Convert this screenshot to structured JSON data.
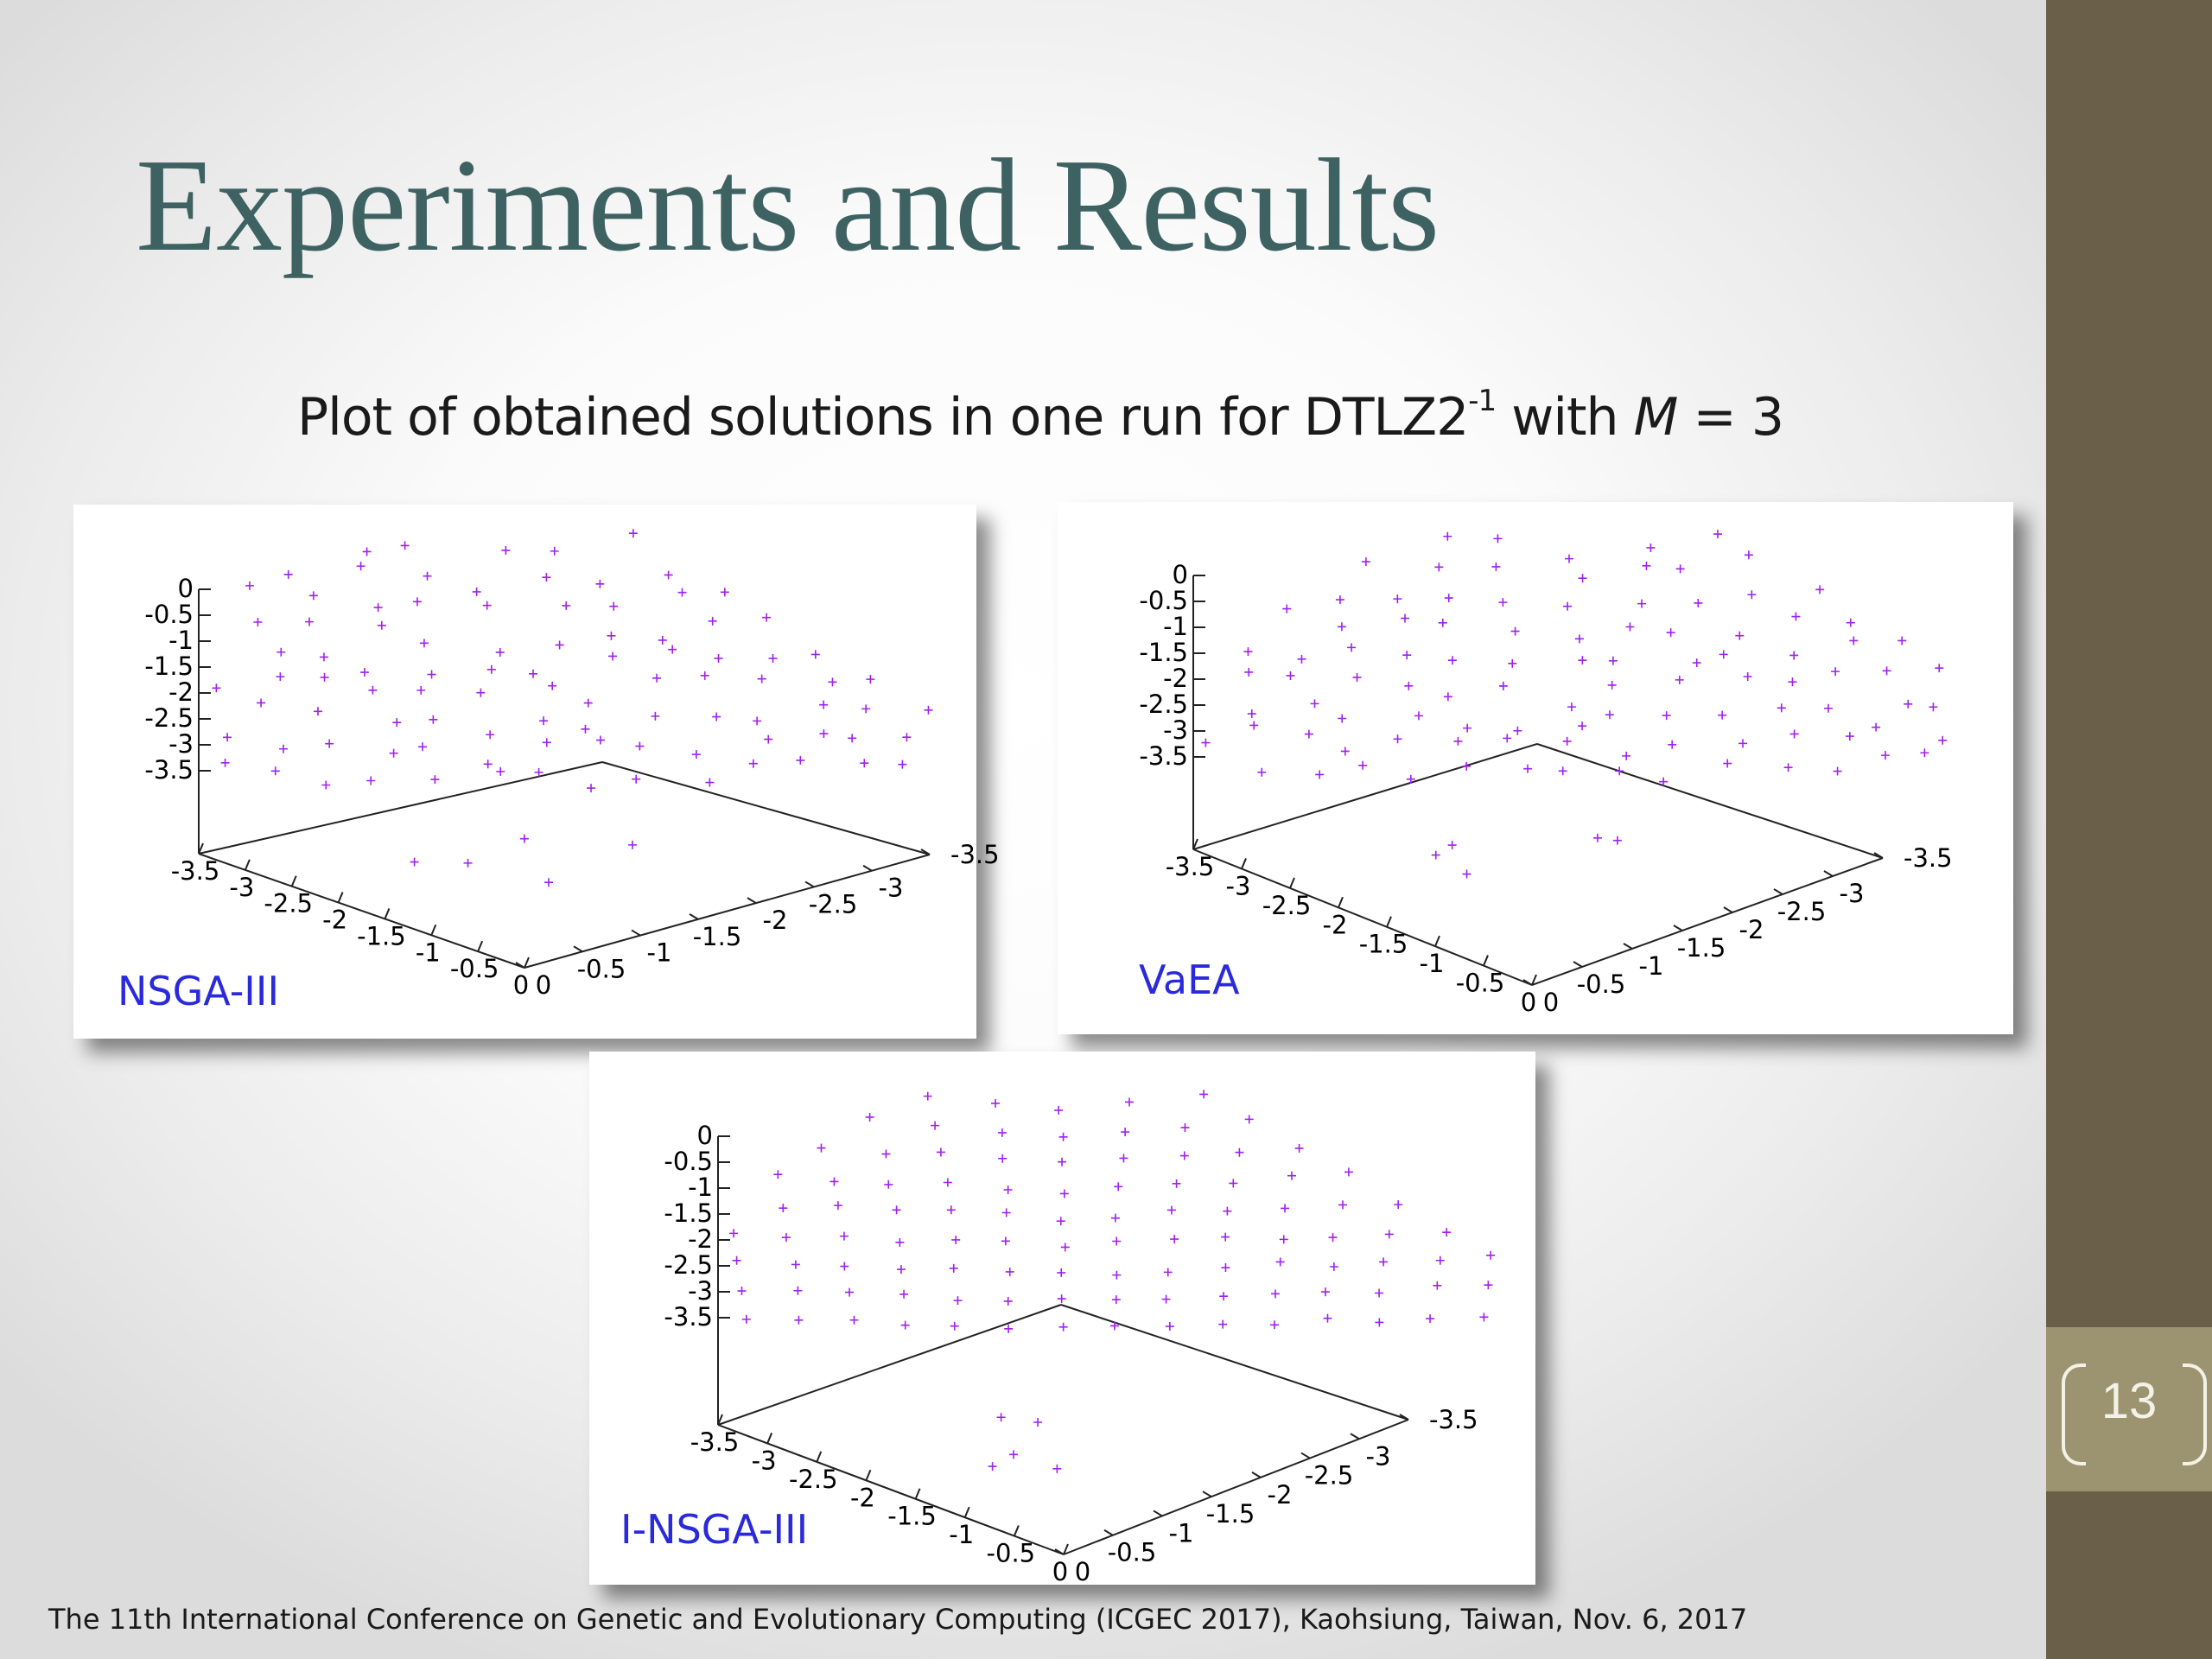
{
  "slide": {
    "title": "Experiments and Results",
    "subtitle_prefix": "Plot of obtained solutions in one run for DTLZ2",
    "subtitle_sup": "-1",
    "subtitle_with": " with ",
    "subtitle_m": "M",
    "subtitle_suffix": " = 3",
    "footer": "The 11th International Conference on Genetic and Evolutionary Computing (ICGEC 2017), Kaohsiung, Taiwan, Nov. 6, 2017",
    "slide_number": "13"
  },
  "colors": {
    "title": "#3e6262",
    "sidebar": "#6a604a",
    "number_box": "#9c9370",
    "plot_label": "#2a2adc",
    "points": "#a020f0"
  },
  "chart_data": [
    {
      "type": "scatter",
      "label": "NSGA-III",
      "z_ticks": [
        "0",
        "-0.5",
        "-1",
        "-1.5",
        "-2",
        "-2.5",
        "-3",
        "-3.5"
      ],
      "x_ticks": [
        "-3.5",
        "-3",
        "-2.5",
        "-2",
        "-1.5",
        "-1",
        "-0.5",
        "0"
      ],
      "y_ticks": [
        "0",
        "-0.5",
        "-1",
        "-1.5",
        "-2",
        "-2.5",
        "-3",
        "-3.5"
      ],
      "marker": "+"
    },
    {
      "type": "scatter",
      "label": "VaEA",
      "z_ticks": [
        "0",
        "-0.5",
        "-1",
        "-1.5",
        "-2",
        "-2.5",
        "-3",
        "-3.5"
      ],
      "x_ticks": [
        "-3.5",
        "-3",
        "-2.5",
        "-2",
        "-1.5",
        "-1",
        "-0.5",
        "0"
      ],
      "y_ticks": [
        "0",
        "-0.5",
        "-1",
        "-1.5",
        "-2",
        "-2.5",
        "-3",
        "-3.5"
      ],
      "marker": "+"
    },
    {
      "type": "scatter",
      "label": "I-NSGA-III",
      "z_ticks": [
        "0",
        "-0.5",
        "-1",
        "-1.5",
        "-2",
        "-2.5",
        "-3",
        "-3.5"
      ],
      "x_ticks": [
        "-3.5",
        "-3",
        "-2.5",
        "-2",
        "-1.5",
        "-1",
        "-0.5",
        "0"
      ],
      "y_ticks": [
        "0",
        "-0.5",
        "-1",
        "-1.5",
        "-2",
        "-2.5",
        "-3",
        "-3.5"
      ],
      "marker": "+"
    }
  ]
}
